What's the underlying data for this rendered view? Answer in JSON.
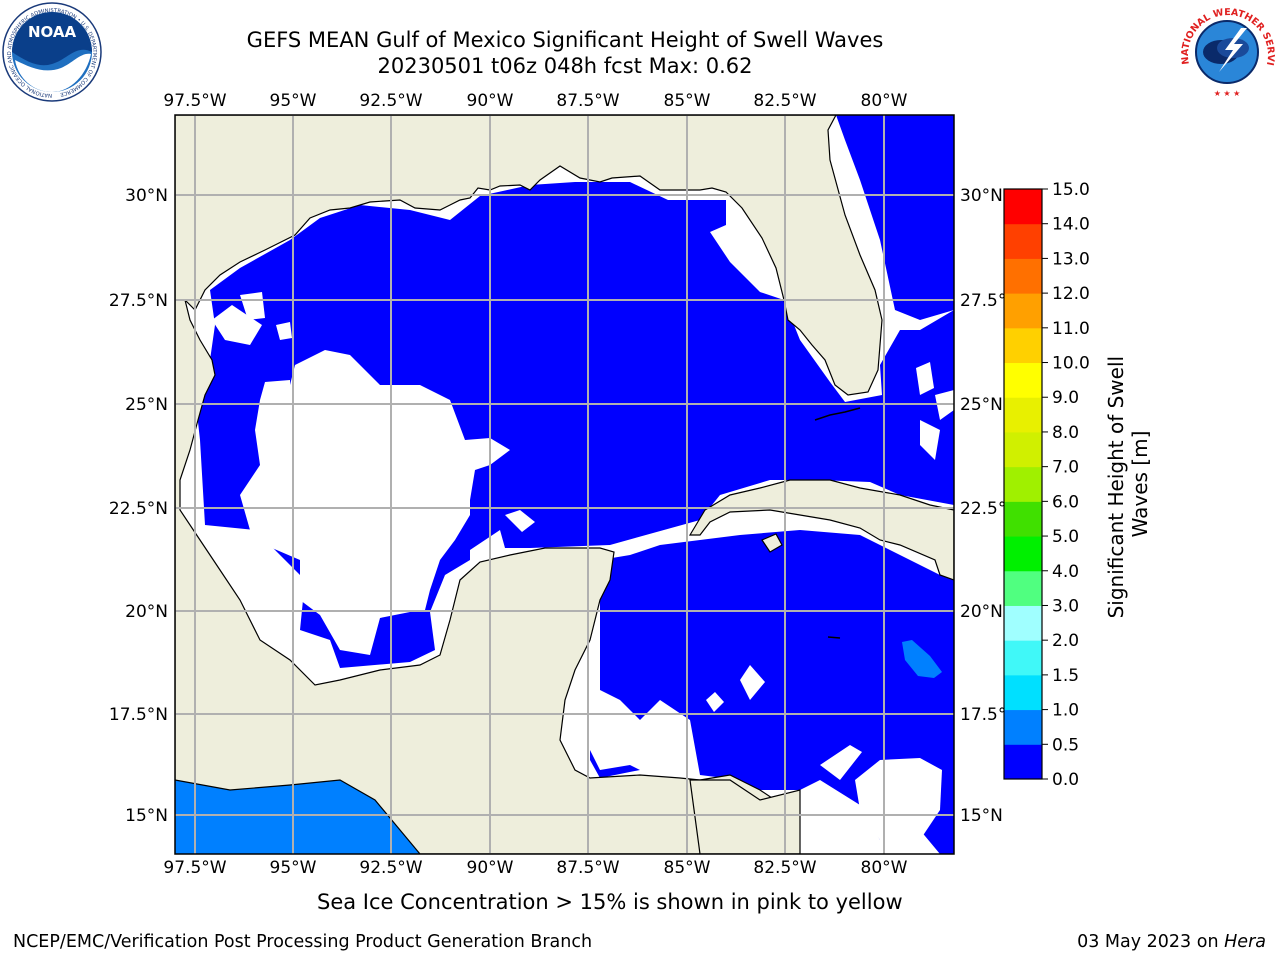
{
  "title_line1": "GEFS MEAN Gulf of Mexico Significant Height of Swell Waves",
  "title_line2": "20230501 t06z 048h fcst   Max: 0.62",
  "map": {
    "lon_labels": [
      "97.5°W",
      "95°W",
      "92.5°W",
      "90°W",
      "87.5°W",
      "85°W",
      "82.5°W",
      "80°W"
    ],
    "lat_labels": [
      "30°N",
      "27.5°N",
      "25°N",
      "22.5°N",
      "20°N",
      "17.5°N",
      "15°N"
    ],
    "lon_values": [
      -97.5,
      -95,
      -92.5,
      -90,
      -87.5,
      -85,
      -82.5,
      -80
    ],
    "lat_values": [
      30,
      27.5,
      25,
      22.5,
      20,
      17.5,
      15
    ],
    "lon_range": [
      -98,
      -78.2
    ],
    "lat_range": [
      14,
      31.7
    ],
    "land_color": "#eeeedc",
    "grid": true
  },
  "colorbar": {
    "label": "Significant Height of Swell Waves [m]",
    "ticks": [
      "15.0",
      "14.0",
      "13.0",
      "12.0",
      "11.0",
      "10.0",
      "9.0",
      "8.0",
      "7.0",
      "6.0",
      "5.0",
      "4.0",
      "3.0",
      "2.0",
      "1.5",
      "1.0",
      "0.5",
      "0.0"
    ],
    "levels": [
      0,
      0.5,
      1,
      1.5,
      2,
      3,
      4,
      5,
      6,
      7,
      8,
      9,
      10,
      11,
      12,
      13,
      14,
      15
    ],
    "colors": [
      "#0000ff",
      "#0080ff",
      "#00e0ff",
      "#40f8f8",
      "#a0ffff",
      "#50ff80",
      "#00f000",
      "#40e000",
      "#a0f000",
      "#d0f000",
      "#e8f000",
      "#ffff00",
      "#ffd000",
      "#ffa000",
      "#ff7000",
      "#ff4000",
      "#ff0000"
    ]
  },
  "note": "Sea Ice Concentration > 15% is shown in pink to yellow",
  "credit": "NCEP/EMC/Verification Post Processing Product Generation Branch",
  "date": "03 May 2023 on",
  "machine": "Hera",
  "logos": {
    "noaa_text": "NOAA",
    "noaa_ring": "NATIONAL OCEANIC AND ATMOSPHERIC ADMINISTRATION • U.S. DEPARTMENT OF COMMERCE",
    "nws_ring": "NATIONAL WEATHER SERVICE"
  }
}
